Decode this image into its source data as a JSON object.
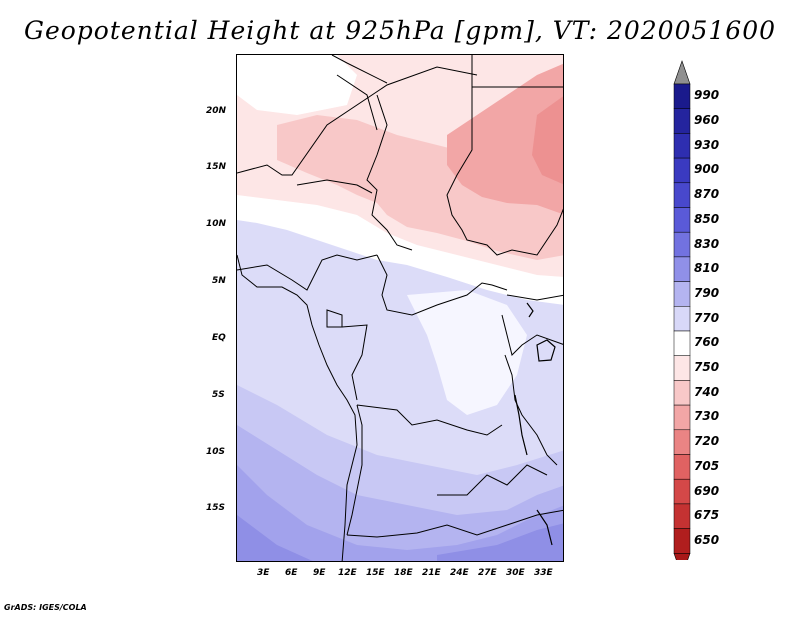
{
  "title": "Geopotential Height at 925hPa [gpm], VT: 2020051600",
  "footer": "GrADS: IGES/COLA",
  "map": {
    "variable": "Geopotential Height",
    "level": "925hPa",
    "units": "gpm",
    "valid_time": "2020051600",
    "lat_ticks": [
      "20N",
      "15N",
      "10N",
      "5N",
      "EQ",
      "5S",
      "10S",
      "15S"
    ],
    "lon_ticks": [
      "3E",
      "6E",
      "9E",
      "12E",
      "15E",
      "18E",
      "21E",
      "24E",
      "27E",
      "30E",
      "33E"
    ]
  },
  "legend": {
    "levels": [
      "990",
      "960",
      "930",
      "900",
      "870",
      "850",
      "830",
      "810",
      "790",
      "770",
      "760",
      "750",
      "740",
      "730",
      "720",
      "705",
      "690",
      "675",
      "650"
    ],
    "colors": [
      "#1a1a8c",
      "#24249e",
      "#2e2eb0",
      "#3a3ac0",
      "#4848cc",
      "#5a5ad8",
      "#7272e0",
      "#9090e8",
      "#b4b4f0",
      "#d8d8f8",
      "#ffffff",
      "#fde6e6",
      "#f8c8c8",
      "#f2a6a6",
      "#ea8484",
      "#e06262",
      "#d44848",
      "#c43232",
      "#b01e1e"
    ],
    "top_arrow_color": "#909090",
    "bottom_arrow_color": "#a81818"
  }
}
